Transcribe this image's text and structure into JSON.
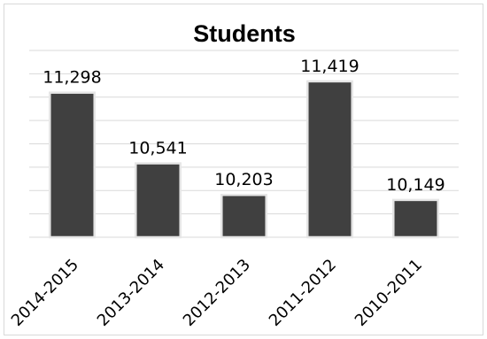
{
  "chart_data": {
    "type": "bar",
    "title": "Students",
    "xlabel": "",
    "ylabel": "",
    "categories": [
      "2014-2015",
      "2013-2014",
      "2012-2013",
      "2011-2012",
      "2010-2011"
    ],
    "values": [
      11298,
      10541,
      10203,
      11419,
      10149
    ],
    "value_labels": [
      "11,298",
      "10,541",
      "10,203",
      "11,419",
      "10,149"
    ],
    "ylim": [
      9750,
      11750
    ],
    "grid": true,
    "legend": "none",
    "colors": {
      "bar_fill": "#404040",
      "bar_highlight": "#e6e6e6",
      "gridline": "#d9d9d9",
      "frame": "#d9d9d9"
    }
  }
}
